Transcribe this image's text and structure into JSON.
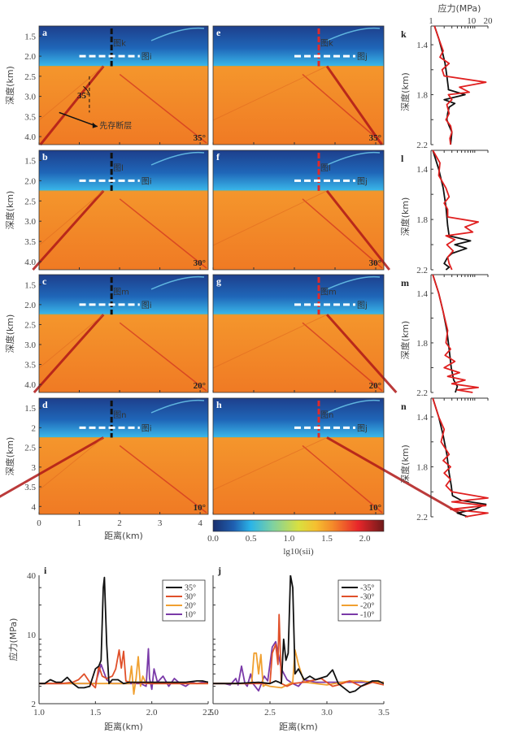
{
  "chart_data": [
    {
      "type": "heatmap",
      "group": "stress-field-maps",
      "colorbar": {
        "label": "lg10(sii)",
        "ticks": [
          "0.0",
          "0.5",
          "1.0",
          "1.5",
          "2.0"
        ],
        "range": [
          0.0,
          2.25
        ],
        "colors": [
          "#1a2f6e",
          "#1f5fb0",
          "#2ab4e8",
          "#7fd1a0",
          "#d8e040",
          "#f5c030",
          "#f48a2a",
          "#e8262a",
          "#6e1a1a"
        ]
      },
      "xlabel": "距离(km)",
      "ylabel": "深度(km)",
      "x_ticks": [
        "0",
        "1",
        "2",
        "3",
        "4"
      ],
      "xlim": [
        0,
        4.2
      ],
      "ylim": [
        1.25,
        4.2
      ],
      "interface_depth": 2.25,
      "panels": [
        {
          "id": "a",
          "angle": "35°",
          "col": "left",
          "profile_x": 1.8,
          "profile_label": "图k",
          "horiz_label": "图i",
          "y_ticks": [
            "1.5",
            "2.0",
            "2.5",
            "3.0",
            "3.5",
            "4.0"
          ],
          "fault_dip_deg": 35,
          "fault_label": "先存断层",
          "dip_label": "35°"
        },
        {
          "id": "b",
          "angle": "30°",
          "col": "left",
          "profile_x": 1.8,
          "profile_label": "图l",
          "horiz_label": "图i",
          "y_ticks": [
            "1.5",
            "2.0",
            "2.5",
            "3.0",
            "3.5",
            "4.0"
          ]
        },
        {
          "id": "c",
          "angle": "20°",
          "col": "left",
          "profile_x": 1.8,
          "profile_label": "图m",
          "horiz_label": "图i",
          "y_ticks": [
            "1.5",
            "2.0",
            "2.5",
            "3.0",
            "3.5",
            "4.0"
          ]
        },
        {
          "id": "d",
          "angle": "10°",
          "col": "left",
          "profile_x": 1.8,
          "profile_label": "图n",
          "horiz_label": "图i",
          "y_ticks": [
            "1.5",
            "2",
            "2.5",
            "3",
            "3.5",
            "4"
          ]
        },
        {
          "id": "e",
          "angle": "-35°",
          "col": "right",
          "profile_x": 2.6,
          "profile_label": "图k",
          "horiz_label": "图j"
        },
        {
          "id": "f",
          "angle": "-30°",
          "col": "right",
          "profile_x": 2.6,
          "profile_label": "图l",
          "horiz_label": "图j"
        },
        {
          "id": "g",
          "angle": "-20°",
          "col": "right",
          "profile_x": 2.6,
          "profile_label": "图m",
          "horiz_label": "图j"
        },
        {
          "id": "h",
          "angle": "-10°",
          "col": "right",
          "profile_x": 2.6,
          "profile_label": "图n",
          "horiz_label": "图j"
        }
      ]
    },
    {
      "type": "line",
      "group": "depth-profiles",
      "title": "应力(MPa)",
      "xscale": "log",
      "xlim": [
        1,
        20
      ],
      "x_ticks": [
        "1",
        "10",
        "20"
      ],
      "ylabel": "深度(km)",
      "ylim": [
        1.25,
        2.2
      ],
      "y_ticks": [
        "1.4",
        "1.8",
        "2.2"
      ],
      "panels": [
        {
          "id": "k",
          "series": [
            {
              "name": "black",
              "color": "#111111",
              "depth": [
                1.25,
                1.35,
                1.45,
                1.55,
                1.65,
                1.75,
                1.76,
                1.8,
                1.84,
                1.87,
                1.9,
                1.95,
                2.0,
                2.05,
                2.1,
                2.15,
                2.2
              ],
              "values": [
                1.2,
                1.5,
                1.8,
                2.1,
                2.3,
                2.5,
                2.5,
                6.0,
                2.0,
                3.5,
                2.6,
                2.4,
                2.3,
                2.6,
                3.0,
                2.9,
                2.8
              ]
            },
            {
              "name": "red",
              "color": "#e02020",
              "depth": [
                1.25,
                1.35,
                1.45,
                1.5,
                1.55,
                1.6,
                1.65,
                1.7,
                1.74,
                1.78,
                1.8,
                1.84,
                1.88,
                1.95,
                2.0,
                2.05,
                2.1,
                2.15,
                2.2
              ],
              "values": [
                1.2,
                1.5,
                1.9,
                1.6,
                2.6,
                1.8,
                2.0,
                18.0,
                4.5,
                7.5,
                2.5,
                3.0,
                2.3,
                2.6,
                2.2,
                2.8,
                3.0,
                2.7,
                2.8
              ]
            }
          ]
        },
        {
          "id": "l",
          "series": [
            {
              "name": "black",
              "color": "#111111",
              "depth": [
                1.25,
                1.4,
                1.55,
                1.7,
                1.85,
                1.93,
                1.97,
                2.0,
                2.03,
                2.07,
                2.1,
                2.15,
                2.18,
                2.2
              ],
              "values": [
                1.1,
                1.5,
                1.9,
                2.2,
                2.4,
                2.6,
                8.0,
                3.5,
                6.5,
                3.0,
                2.4,
                2.0,
                2.6,
                2.2
              ]
            },
            {
              "name": "red",
              "color": "#e02020",
              "depth": [
                1.25,
                1.35,
                1.45,
                1.55,
                1.62,
                1.67,
                1.72,
                1.78,
                1.82,
                1.86,
                1.9,
                1.93,
                1.96,
                2.0,
                2.05,
                2.1,
                2.15,
                2.2
              ],
              "values": [
                1.1,
                1.6,
                1.5,
                2.2,
                2.6,
                2.0,
                2.4,
                2.4,
                12.0,
                6.0,
                9.0,
                2.2,
                3.5,
                2.3,
                3.2,
                2.4,
                2.6,
                3.0
              ]
            }
          ]
        },
        {
          "id": "m",
          "series": [
            {
              "name": "black",
              "color": "#111111",
              "depth": [
                1.25,
                1.4,
                1.55,
                1.7,
                1.85,
                2.0,
                2.1,
                2.15,
                2.2
              ],
              "values": [
                1.1,
                1.5,
                1.9,
                2.3,
                2.6,
                2.9,
                3.3,
                4.0,
                3.6
              ]
            },
            {
              "name": "red",
              "color": "#e02020",
              "depth": [
                1.25,
                1.4,
                1.55,
                1.7,
                1.8,
                1.85,
                1.9,
                1.95,
                2.0,
                2.04,
                2.07,
                2.1,
                2.13,
                2.16,
                2.18,
                2.2
              ],
              "values": [
                1.1,
                1.5,
                1.9,
                2.4,
                2.2,
                2.8,
                2.1,
                3.5,
                2.0,
                4.5,
                2.4,
                6.0,
                3.0,
                12.0,
                4.0,
                9.0
              ]
            }
          ]
        },
        {
          "id": "n",
          "series": [
            {
              "name": "black",
              "color": "#111111",
              "depth": [
                1.25,
                1.4,
                1.55,
                1.7,
                1.85,
                1.95,
                2.03,
                2.07,
                2.1,
                2.14,
                2.17,
                2.2
              ],
              "values": [
                1.1,
                1.5,
                1.9,
                2.3,
                2.6,
                2.9,
                3.1,
                5.0,
                18.0,
                10.0,
                4.0,
                7.0
              ]
            },
            {
              "name": "red",
              "color": "#e02020",
              "depth": [
                1.25,
                1.4,
                1.5,
                1.6,
                1.7,
                1.75,
                1.8,
                1.85,
                1.9,
                1.95,
                2.0,
                2.05,
                2.08,
                2.11,
                2.14,
                2.17,
                2.2
              ],
              "values": [
                1.1,
                1.5,
                2.0,
                1.7,
                2.6,
                1.9,
                2.8,
                2.0,
                2.8,
                2.2,
                3.0,
                20.0,
                3.0,
                18.0,
                2.8,
                20.0,
                6.0
              ]
            }
          ]
        }
      ]
    },
    {
      "type": "line",
      "id": "i",
      "xlabel": "距离(km)",
      "ylabel": "应力(MPa)",
      "yscale": "log",
      "xlim": [
        1.0,
        2.5
      ],
      "ylim": [
        2,
        40
      ],
      "x_ticks": [
        "1.0",
        "1.5",
        "2.0",
        "2.5"
      ],
      "y_ticks": [
        "2",
        "10",
        "40"
      ],
      "legend": "top-right",
      "series": [
        {
          "name": "35°",
          "color": "#111111",
          "x": [
            1.0,
            1.05,
            1.1,
            1.15,
            1.2,
            1.25,
            1.3,
            1.35,
            1.4,
            1.45,
            1.5,
            1.53,
            1.55,
            1.57,
            1.58,
            1.6,
            1.62,
            1.65,
            1.7,
            1.75,
            1.8,
            1.9,
            2.0,
            2.1,
            2.2,
            2.3,
            2.4,
            2.45,
            2.5
          ],
          "y": [
            3.2,
            3.2,
            3.5,
            3.3,
            3.3,
            3.7,
            3.2,
            2.9,
            2.9,
            3.0,
            4.5,
            4.8,
            5.5,
            30,
            38,
            8,
            3.2,
            3.5,
            3.5,
            3.2,
            3.3,
            3.3,
            3.3,
            3.3,
            3.3,
            3.3,
            3.4,
            3.4,
            3.3
          ]
        },
        {
          "name": "30°",
          "color": "#e0502a",
          "x": [
            1.0,
            1.2,
            1.3,
            1.35,
            1.4,
            1.45,
            1.5,
            1.53,
            1.56,
            1.6,
            1.65,
            1.68,
            1.71,
            1.73,
            1.75,
            1.77,
            1.8,
            2.0,
            2.5
          ],
          "y": [
            3.2,
            3.2,
            3.3,
            3.5,
            4.0,
            3.3,
            2.9,
            4.8,
            3.8,
            3.6,
            3.8,
            4.5,
            7.0,
            4.6,
            6.8,
            3.4,
            3.3,
            3.2,
            3.2
          ]
        },
        {
          "name": "20°",
          "color": "#f0a030",
          "x": [
            1.0,
            1.5,
            1.8,
            1.82,
            1.84,
            1.86,
            1.88,
            1.9,
            1.92,
            1.95,
            2.0,
            2.5
          ],
          "y": [
            3.2,
            3.2,
            3.2,
            4.8,
            2.5,
            3.6,
            6.0,
            3.0,
            3.8,
            3.2,
            3.2,
            3.2
          ]
        },
        {
          "name": "10°",
          "color": "#7a3aa8",
          "x": [
            1.0,
            1.5,
            1.55,
            1.6,
            1.65,
            1.7,
            1.8,
            1.9,
            1.95,
            1.97,
            1.98,
            2.0,
            2.02,
            2.05,
            2.1,
            2.15,
            2.2,
            2.25,
            2.3,
            2.35,
            2.4,
            2.45,
            2.5
          ],
          "y": [
            3.2,
            3.2,
            5.0,
            3.5,
            3.2,
            3.2,
            3.2,
            3.2,
            3.0,
            7.2,
            3.6,
            2.8,
            4.5,
            3.3,
            3.8,
            3.0,
            3.6,
            3.2,
            3.0,
            3.3,
            3.2,
            3.3,
            3.3
          ]
        }
      ]
    },
    {
      "type": "line",
      "id": "j",
      "xlabel": "距离(km)",
      "xlim": [
        2.0,
        3.5
      ],
      "ylim": [
        2,
        40
      ],
      "yscale": "log",
      "x_ticks": [
        "2.0",
        "2.5",
        "3.0",
        "3.5"
      ],
      "legend": "top-right",
      "series": [
        {
          "name": "-35°",
          "color": "#111111",
          "x": [
            2.0,
            2.2,
            2.4,
            2.5,
            2.55,
            2.58,
            2.6,
            2.62,
            2.64,
            2.66,
            2.68,
            2.7,
            2.72,
            2.75,
            2.8,
            2.85,
            2.9,
            3.0,
            3.05,
            3.1,
            3.2,
            3.25,
            3.3,
            3.4,
            3.45,
            3.5
          ],
          "y": [
            3.2,
            3.2,
            3.3,
            3.2,
            3.4,
            3.3,
            3.2,
            9.0,
            5.5,
            6.5,
            40,
            30,
            4.0,
            4.5,
            3.5,
            3.8,
            3.5,
            3.8,
            4.4,
            3.2,
            2.6,
            2.7,
            3.0,
            3.4,
            3.4,
            3.2
          ]
        },
        {
          "name": "-30°",
          "color": "#e0502a",
          "x": [
            2.0,
            2.4,
            2.5,
            2.52,
            2.55,
            2.57,
            2.58,
            2.6,
            2.65,
            2.7,
            2.8,
            2.95,
            3.05,
            3.1,
            3.2,
            3.3,
            3.4,
            3.5
          ],
          "y": [
            3.2,
            3.2,
            3.2,
            6.5,
            8.0,
            5.0,
            16,
            3.2,
            3.0,
            3.2,
            3.3,
            3.6,
            3.0,
            3.1,
            3.4,
            3.0,
            3.3,
            3.1
          ]
        },
        {
          "name": "-20°",
          "color": "#f0a030",
          "x": [
            2.0,
            2.3,
            2.34,
            2.36,
            2.38,
            2.4,
            2.42,
            2.44,
            2.46,
            2.5,
            2.6,
            2.7,
            2.72,
            2.75,
            2.8,
            2.9,
            3.0,
            3.2,
            3.3,
            3.4,
            3.5
          ],
          "y": [
            3.2,
            3.2,
            3.3,
            6.5,
            6.5,
            4.0,
            6.3,
            3.0,
            3.1,
            3.0,
            2.9,
            3.3,
            7.0,
            5.0,
            3.3,
            3.2,
            3.1,
            3.4,
            3.4,
            3.3,
            3.3
          ]
        },
        {
          "name": "-10°",
          "color": "#7a3aa8",
          "x": [
            2.0,
            2.1,
            2.15,
            2.2,
            2.22,
            2.25,
            2.28,
            2.3,
            2.33,
            2.35,
            2.4,
            2.45,
            2.48,
            2.52,
            2.55,
            2.6,
            2.65,
            2.7,
            2.75,
            2.8,
            2.9,
            3.0,
            3.5
          ],
          "y": [
            3.2,
            3.2,
            3.1,
            3.6,
            3.1,
            4.8,
            3.2,
            3.0,
            4.0,
            3.2,
            2.7,
            3.8,
            3.4,
            7.5,
            8.5,
            4.5,
            3.5,
            3.2,
            3.0,
            3.5,
            3.3,
            3.3,
            3.3
          ]
        }
      ]
    }
  ],
  "labels": {
    "depth_axis": "深度(km)",
    "distance_axis": "距离(km)",
    "stress_axis": "应力(MPa)",
    "colorbar_label": "lg10(sii)",
    "profile_top_title": "应力(MPa)"
  }
}
